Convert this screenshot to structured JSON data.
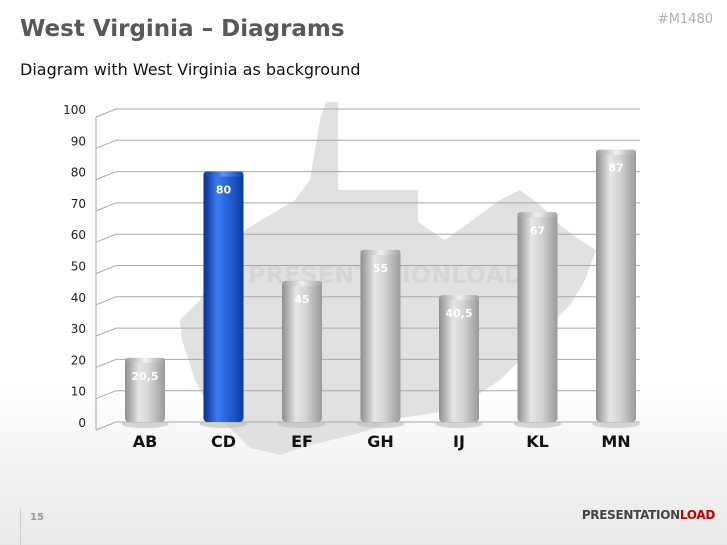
{
  "slide": {
    "title": "West Virginia – Diagrams",
    "code": "#M1480",
    "subtitle": "Diagram with West Virginia as background",
    "page_number": "15",
    "brand_part1": "PRESENTATION",
    "brand_part2": "LOAD",
    "watermark": "PRESENTATIONLOAD"
  },
  "colors": {
    "highlight_bar": "#1f5fd6",
    "default_bar": "#c8c8c8",
    "brand_accent": "#c00000",
    "map_shape": "#dcdcdc"
  },
  "chart_data": {
    "type": "bar",
    "categories": [
      "AB",
      "CD",
      "EF",
      "GH",
      "IJ",
      "KL",
      "MN"
    ],
    "values": [
      20.5,
      80,
      45,
      55,
      40.5,
      67,
      87
    ],
    "value_labels": [
      "20,5",
      "80",
      "45",
      "55",
      "40,5",
      "67",
      "87"
    ],
    "highlight_index": 1,
    "ylim": [
      0,
      100
    ],
    "yticks": [
      "0",
      "10",
      "20",
      "30",
      "40",
      "50",
      "60",
      "70",
      "80",
      "90",
      "100"
    ],
    "grid": true,
    "legend": "none",
    "background_icon": "west-virginia-map-shape"
  }
}
